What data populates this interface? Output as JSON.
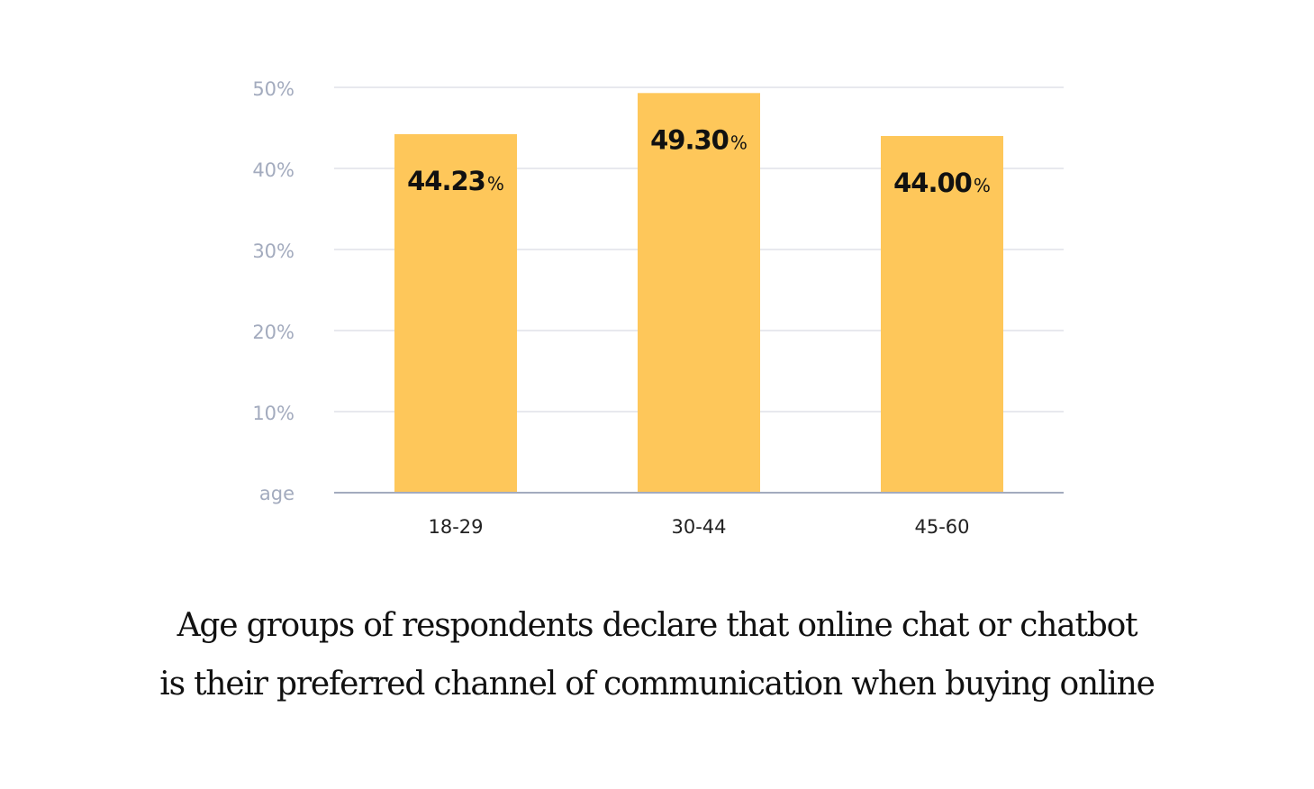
{
  "chart_data": {
    "type": "bar",
    "categories": [
      "18-29",
      "30-44",
      "45-60"
    ],
    "values": [
      44.23,
      49.3,
      44.0
    ],
    "data_labels": [
      "44.23",
      "49.30",
      "44.00"
    ],
    "data_label_unit": "%",
    "ylim": [
      0,
      50
    ],
    "yticks": [
      {
        "value": 10,
        "label": "10%"
      },
      {
        "value": 20,
        "label": "20%"
      },
      {
        "value": 30,
        "label": "30%"
      },
      {
        "value": 40,
        "label": "40%"
      },
      {
        "value": 50,
        "label": "50%"
      }
    ],
    "xlabel": "age",
    "grid": true,
    "bar_color": "#fec75a",
    "grid_color": "#d9dce4",
    "axis_color": "#a3abbe"
  },
  "caption": {
    "line1": "Age groups of respondents declare that online chat or chatbot",
    "line2": "is their preferred channel of communication when buying online"
  }
}
